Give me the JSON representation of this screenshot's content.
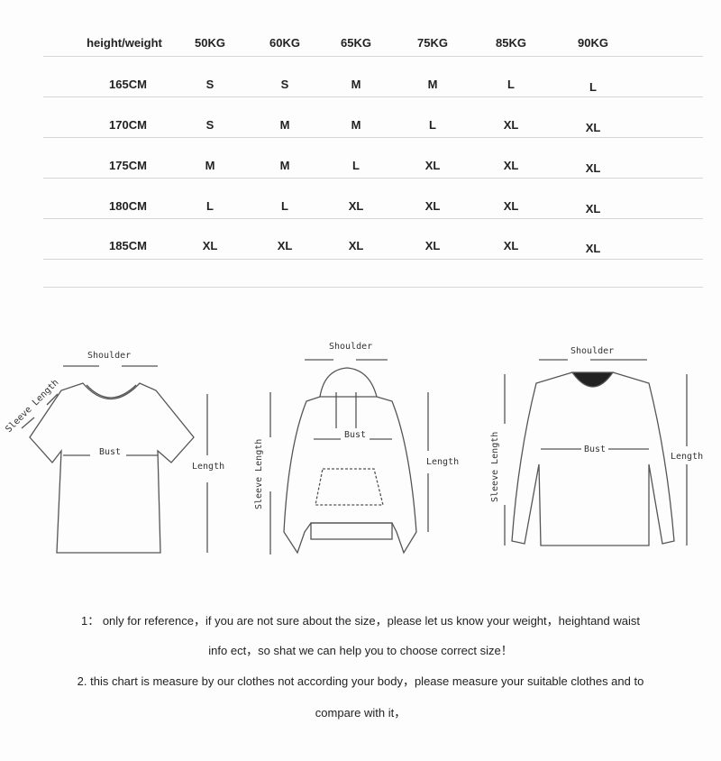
{
  "size_table": {
    "corner_header": "height/weight",
    "weights": [
      "50KG",
      "60KG",
      "65KG",
      "75KG",
      "85KG",
      "90KG"
    ],
    "rows": [
      {
        "height": "165CM",
        "sizes": [
          "S",
          "S",
          "M",
          "M",
          "L",
          "L"
        ]
      },
      {
        "height": "170CM",
        "sizes": [
          "S",
          "M",
          "M",
          "L",
          "XL",
          "XL"
        ]
      },
      {
        "height": "175CM",
        "sizes": [
          "M",
          "M",
          "L",
          "XL",
          "XL",
          "XL"
        ]
      },
      {
        "height": "180CM",
        "sizes": [
          "L",
          "L",
          "XL",
          "XL",
          "XL",
          "XL"
        ]
      },
      {
        "height": "185CM",
        "sizes": [
          "XL",
          "XL",
          "XL",
          "XL",
          "XL",
          "XL"
        ]
      }
    ]
  },
  "diagrams": {
    "tshirt": {
      "shoulder": "Shoulder",
      "sleeve": "Sleeve Length",
      "bust": "Bust",
      "length": "Length"
    },
    "hoodie": {
      "shoulder": "Shoulder",
      "sleeve": "Sleeve Length",
      "bust": "Bust",
      "length": "Length"
    },
    "longsleeve": {
      "shoulder": "Shoulder",
      "sleeve": "Sleeve Length",
      "bust": "Bust",
      "length": "Length"
    }
  },
  "notes": {
    "line1": "1：  only for reference，if you are not sure about the size，please let us know your weight，heightand waist",
    "line2": "info ect，so shat we can help you to choose correct size！",
    "line3": "2. this chart is measure by our clothes not according your body，please measure your suitable clothes and to",
    "line4": "compare with it，"
  }
}
